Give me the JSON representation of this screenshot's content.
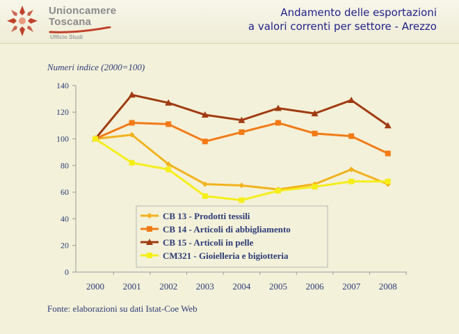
{
  "header": {
    "org_name_line1": "Unioncamere",
    "org_name_line2": "Toscana",
    "org_subtitle": "Ufficio Studi",
    "title_line1": "Andamento delle esportazioni",
    "title_line2": "a valori correnti per settore - Arezzo"
  },
  "colors": {
    "background": "#f3f1d9",
    "title": "#1f1f8a",
    "axis_text": "#2d3a78",
    "logo": "#c0412a"
  },
  "chart_data": {
    "type": "line",
    "title": "",
    "ylabel": "Numeri indice (2000=100)",
    "xlabel": "",
    "x": [
      "2000",
      "2001",
      "2002",
      "2003",
      "2004",
      "2005",
      "2006",
      "2007",
      "2008"
    ],
    "yticks": [
      0,
      20,
      40,
      60,
      80,
      100,
      120,
      140
    ],
    "ylim": [
      0,
      140
    ],
    "grid": false,
    "legend_position": "bottom-center",
    "series": [
      {
        "name": "CB 13 - Prodotti tessili",
        "color": "#f2b21e",
        "marker": "diamond",
        "values": [
          100,
          103,
          81,
          66,
          65,
          62,
          66,
          77,
          66
        ]
      },
      {
        "name": "CB 14 - Articoli di abbigliamento",
        "color": "#f27a16",
        "marker": "square",
        "values": [
          100,
          112,
          111,
          98,
          105,
          112,
          104,
          102,
          89
        ]
      },
      {
        "name": "CB 15 - Articoli in pelle",
        "color": "#a03a10",
        "marker": "triangle",
        "values": [
          100,
          133,
          127,
          118,
          114,
          123,
          119,
          129,
          110
        ]
      },
      {
        "name": "CM321 - Gioielleria e bigiotteria",
        "color": "#f5ee1a",
        "marker": "square",
        "values": [
          100,
          82,
          77,
          57,
          54,
          61,
          64,
          68,
          68
        ]
      }
    ]
  },
  "footer": {
    "source": "Fonte: elaborazioni su dati Istat-Coe Web"
  }
}
